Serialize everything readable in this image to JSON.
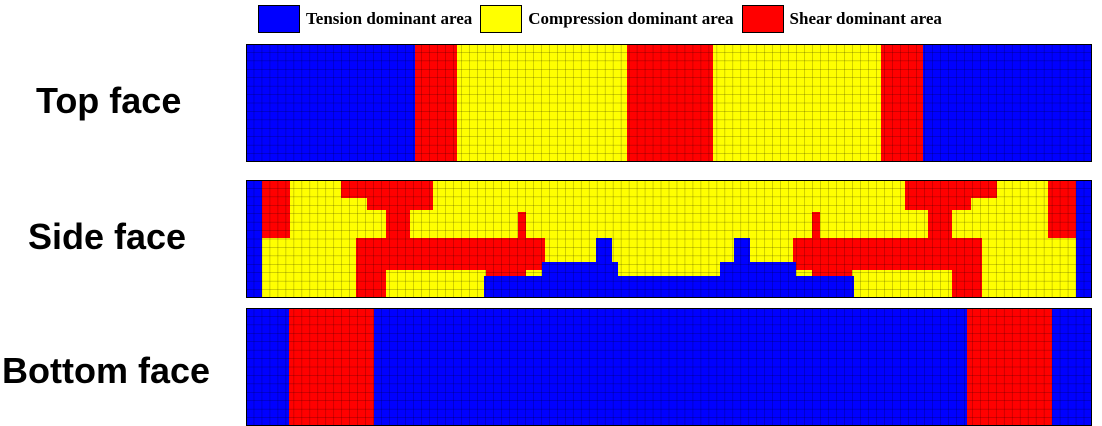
{
  "legend": {
    "tension": {
      "label": "Tension dominant area",
      "color": "#0000ff"
    },
    "compression": {
      "label": "Compression dominant area",
      "color": "#ffff00"
    },
    "shear": {
      "label": "Shear dominant area",
      "color": "#ff0000"
    }
  },
  "faces": {
    "top": {
      "label": "Top face"
    },
    "side": {
      "label": "Side face"
    },
    "bottom": {
      "label": "Bottom face"
    }
  },
  "grid_color": "#000000"
}
